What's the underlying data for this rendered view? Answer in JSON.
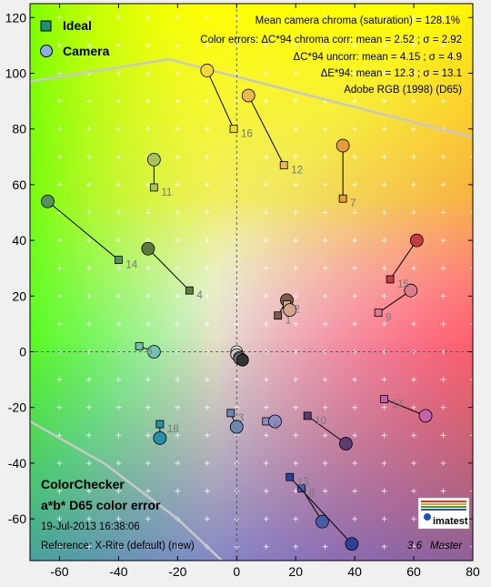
{
  "chart_data": {
    "type": "scatter",
    "title": "ColorChecker",
    "subtitle": "a*b* D65 color error",
    "date": "19-Jul-2013 16:38:06",
    "reference": "Reference: X-Rite (default) (new)",
    "version": "3.6",
    "edition": "Master",
    "logo_text": "imatest",
    "xlim": [
      -70,
      80
    ],
    "ylim": [
      -75,
      125
    ],
    "x_ticks": [
      -60,
      -40,
      -20,
      0,
      20,
      40,
      60,
      80
    ],
    "y_ticks": [
      -60,
      -40,
      -20,
      0,
      20,
      40,
      60,
      80,
      100,
      120
    ],
    "x_tick_labels": [
      "-60",
      "-40",
      "-20",
      "0",
      "20",
      "40",
      "60",
      "80"
    ],
    "y_tick_labels": [
      "-60",
      "-40",
      "-20",
      "0",
      "20",
      "40",
      "60",
      "80",
      "100",
      "120"
    ],
    "legend": {
      "placement": "top-left",
      "ideal_label": "Ideal",
      "camera_label": "Camera"
    },
    "stats": [
      "Mean camera chroma (saturation) = 128.1%",
      "Color errors: ΔC*94 chroma corr:  mean = 2.52 ;  σ = 2.92",
      "ΔC*94 uncorr:  mean = 4.15 ;  σ = 4.9",
      "ΔE*94:  mean = 12.3 ;  σ = 13.1",
      "Adobe RGB (1998) (D65)"
    ],
    "gamut_boundary": [
      [
        -70,
        97
      ],
      [
        -23,
        105
      ],
      [
        80,
        77
      ]
    ],
    "gamut_boundary_lower": [
      [
        -70,
        -25
      ],
      [
        -45,
        -40
      ],
      [
        -20,
        -60
      ],
      [
        -5,
        -75
      ]
    ],
    "patches": [
      {
        "label": "1",
        "ideal": [
          14,
          13
        ],
        "camera": [
          17,
          18.5
        ],
        "color": "#7a5c4c"
      },
      {
        "label": "2",
        "ideal": [
          17,
          17
        ],
        "camera": [
          18,
          15
        ],
        "color": "#d4a58e"
      },
      {
        "label": "3",
        "ideal": [
          -2,
          -22
        ],
        "camera": [
          0,
          -27
        ],
        "color": "#6d86ad"
      },
      {
        "label": "4",
        "ideal": [
          -16,
          22
        ],
        "camera": [
          -30,
          37
        ],
        "color": "#5e7a3c"
      },
      {
        "label": "5",
        "ideal": [
          10,
          -25
        ],
        "camera": [
          13,
          -25
        ],
        "color": "#8b8ec4"
      },
      {
        "label": "6",
        "ideal": [
          -33,
          2
        ],
        "camera": [
          -28,
          0
        ],
        "color": "#73c0b2"
      },
      {
        "label": "7",
        "ideal": [
          36,
          55
        ],
        "camera": [
          36,
          74
        ],
        "color": "#ea9c3a"
      },
      {
        "label": "8",
        "ideal": [
          22,
          -49
        ],
        "camera": [
          29,
          -61
        ],
        "color": "#4a5ea8"
      },
      {
        "label": "9",
        "ideal": [
          48,
          14
        ],
        "camera": [
          59,
          22
        ],
        "color": "#d97a8e"
      },
      {
        "label": "10",
        "ideal": [
          24,
          -23
        ],
        "camera": [
          37,
          -33
        ],
        "color": "#5d3c70"
      },
      {
        "label": "11",
        "ideal": [
          -28,
          59
        ],
        "camera": [
          -28,
          69
        ],
        "color": "#a8c459"
      },
      {
        "label": "12",
        "ideal": [
          16,
          67
        ],
        "camera": [
          4,
          92
        ],
        "color": "#e8b84a"
      },
      {
        "label": "13",
        "ideal": [
          18,
          -45
        ],
        "camera": [
          39,
          -69
        ],
        "color": "#2f3f98"
      },
      {
        "label": "14",
        "ideal": [
          -40,
          33
        ],
        "camera": [
          -64,
          54
        ],
        "color": "#56935a"
      },
      {
        "label": "15",
        "ideal": [
          52,
          26
        ],
        "camera": [
          61,
          40
        ],
        "color": "#c43d42"
      },
      {
        "label": "16",
        "ideal": [
          -1,
          80
        ],
        "camera": [
          -10,
          101
        ],
        "color": "#f5d633"
      },
      {
        "label": "17",
        "ideal": [
          50,
          -17
        ],
        "camera": [
          64,
          -23
        ],
        "color": "#c461a8"
      },
      {
        "label": "18",
        "ideal": [
          -26,
          -26
        ],
        "camera": [
          -26,
          -31
        ],
        "color": "#288eaa"
      }
    ],
    "neutrals": [
      {
        "camera": [
          0,
          0
        ],
        "color": "#f4f4f4"
      },
      {
        "camera": [
          0,
          -1
        ],
        "color": "#c8c8c8"
      },
      {
        "camera": [
          1,
          -2
        ],
        "color": "#a0a0a0"
      },
      {
        "camera": [
          1,
          -2.5
        ],
        "color": "#7a7a7a"
      },
      {
        "camera": [
          2,
          -3
        ],
        "color": "#555555"
      },
      {
        "camera": [
          2,
          -3
        ],
        "color": "#343434"
      }
    ]
  }
}
